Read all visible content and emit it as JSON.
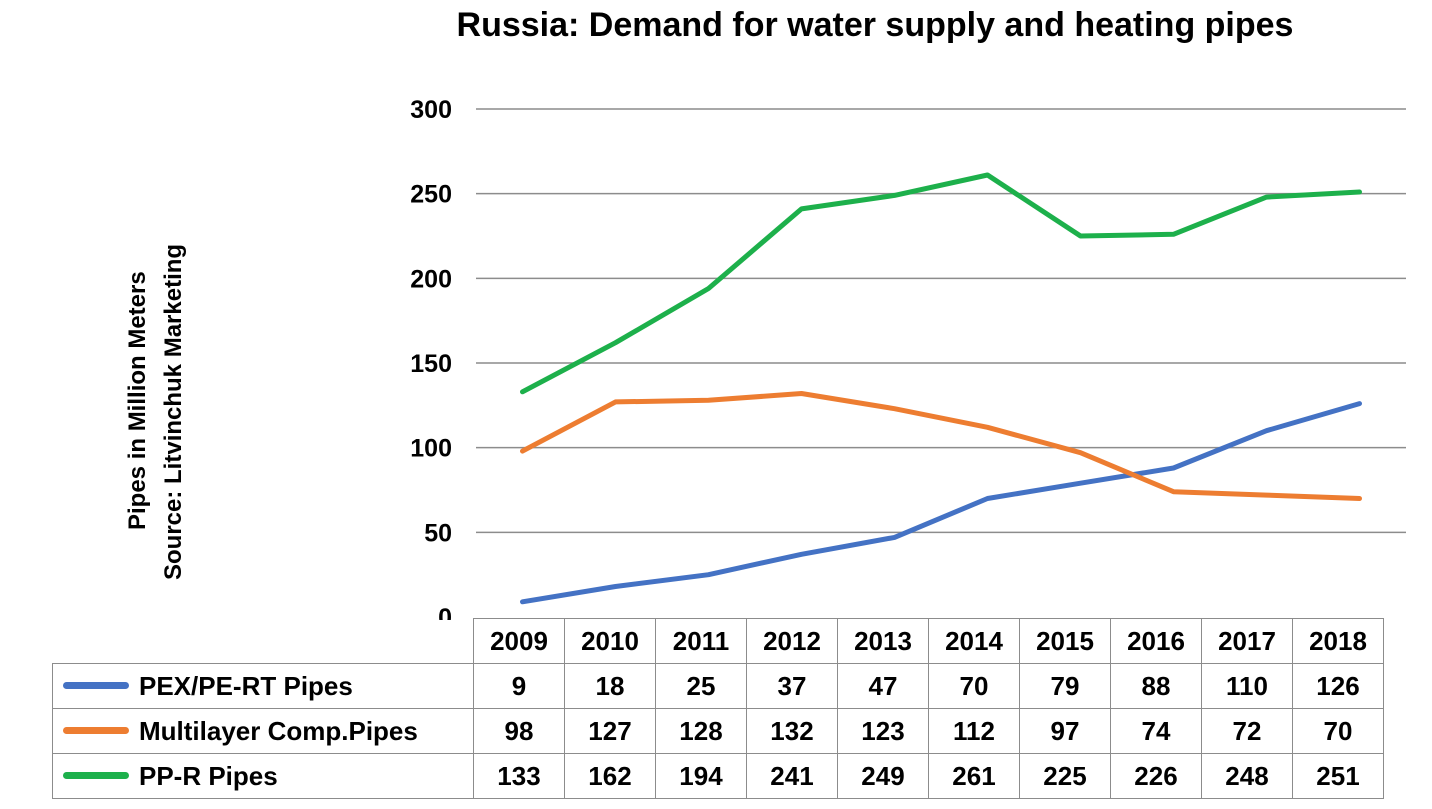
{
  "chart_data": {
    "type": "line",
    "title": "Russia: Demand for water supply and heating pipes",
    "ylabel": "Pipes in Million Meters",
    "ysublabel": "Source: Litvinchuk Marketing",
    "xlabel": "",
    "ylim": [
      0,
      300
    ],
    "yticks": [
      0,
      50,
      100,
      150,
      200,
      250,
      300
    ],
    "grid": true,
    "legend": "data-table-below",
    "categories": [
      "2009",
      "2010",
      "2011",
      "2012",
      "2013",
      "2014",
      "2015",
      "2016",
      "2017",
      "2018"
    ],
    "series": [
      {
        "name": "PEX/PE-RT Pipes",
        "color": "#4472C4",
        "values": [
          9,
          18,
          25,
          37,
          47,
          70,
          79,
          88,
          110,
          126
        ]
      },
      {
        "name": "Multilayer Comp.Pipes",
        "color": "#ED7D31",
        "values": [
          98,
          127,
          128,
          132,
          123,
          112,
          97,
          74,
          72,
          70
        ]
      },
      {
        "name": "PP-R Pipes",
        "color": "#1DB04B",
        "values": [
          133,
          162,
          194,
          241,
          249,
          261,
          225,
          226,
          248,
          251
        ]
      }
    ]
  }
}
